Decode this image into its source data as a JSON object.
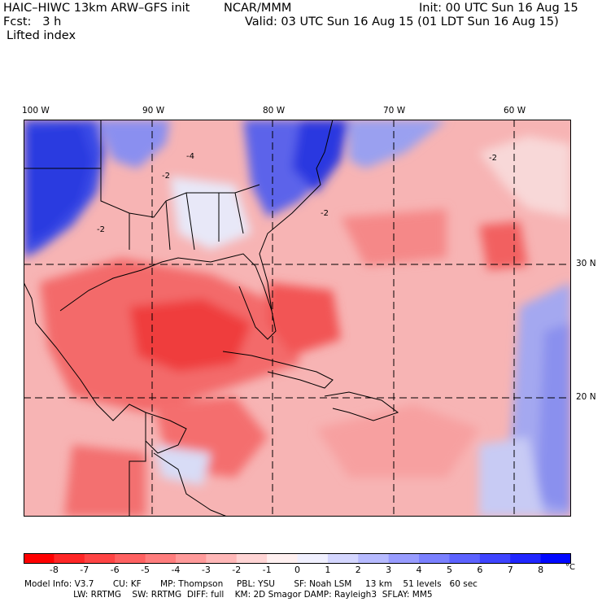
{
  "header": {
    "model": "HAIC–HIWC 13km ARW–GFS init",
    "org": "NCAR/MMM",
    "init": "Init: 00 UTC Sun 16 Aug 15",
    "fcst": "Fcst:   3 h",
    "valid": "Valid: 03 UTC Sun 16 Aug 15 (01 LDT Sun 16 Aug 15)",
    "field": "Lifted index"
  },
  "map": {
    "lon_labels": [
      "100 W",
      "90 W",
      "80 W",
      "70 W",
      "60 W"
    ],
    "lat_labels": [
      "30 N",
      "20 N"
    ],
    "colors": {
      "strong_neg": "#ee2020",
      "neg": "#f46a6a",
      "weak_neg": "#fbbdbd",
      "weak_pos": "#c8cbf4",
      "pos": "#7a80ea",
      "strong_pos": "#2430e0"
    }
  },
  "colorbar": {
    "ticks": [
      "-8",
      "-7",
      "-6",
      "-5",
      "-4",
      "-3",
      "-2",
      "-1",
      "0",
      "1",
      "2",
      "3",
      "4",
      "5",
      "6",
      "7",
      "8"
    ],
    "unit": "°C",
    "colors": [
      "#ff0000",
      "#ff2626",
      "#ff4444",
      "#ff6161",
      "#ff7d7d",
      "#ff9a9a",
      "#ffb7b7",
      "#ffd4d4",
      "#fff0f0",
      "#f0f0ff",
      "#d4d6ff",
      "#b6baff",
      "#989cff",
      "#7a80ff",
      "#5c62ff",
      "#3e44ff",
      "#2026ff",
      "#0008ff"
    ]
  },
  "footer": {
    "line1": "Model Info: V3.7       CU: KF       MP: Thompson     PBL: YSU       SF: Noah LSM     13 km    51 levels   60 sec",
    "line2": "                  LW: RRTMG    SW: RRTMG  DIFF: full    KM: 2D Smagor DAMP: Rayleigh3  SFLAY: MM5"
  }
}
